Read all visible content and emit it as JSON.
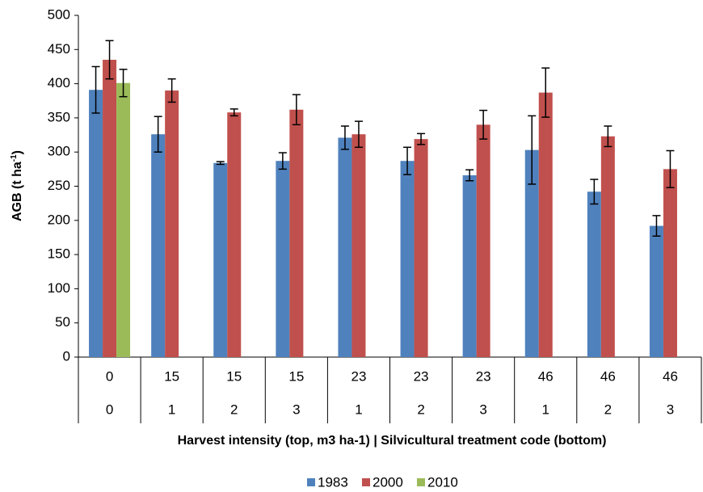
{
  "chart_data": {
    "type": "bar",
    "ylabel": {
      "text": "AGB (t ha",
      "sup": "-1",
      "end": ")"
    },
    "xlabel": "Harvest intensity (top, m3 ha-1) | Silvicultural treatment code (bottom)",
    "categories": [
      "0",
      "15",
      "15",
      "15",
      "23",
      "23",
      "23",
      "46",
      "46",
      "46"
    ],
    "categories_bottom": [
      "0",
      "1",
      "2",
      "3",
      "1",
      "2",
      "3",
      "1",
      "2",
      "3"
    ],
    "series": [
      {
        "name": "1983",
        "color": "#4f81bd",
        "values": [
          391,
          326,
          284,
          287,
          321,
          287,
          266,
          303,
          242,
          192
        ],
        "errors": [
          34,
          26,
          2,
          12,
          17,
          20,
          8,
          50,
          18,
          15
        ]
      },
      {
        "name": "2000",
        "color": "#c0504d",
        "values": [
          435,
          390,
          358,
          362,
          326,
          319,
          340,
          387,
          323,
          275
        ],
        "errors": [
          28,
          17,
          5,
          22,
          19,
          8,
          21,
          36,
          15,
          27
        ]
      },
      {
        "name": "2010",
        "color": "#9bbb59",
        "values": [
          401,
          null,
          null,
          null,
          null,
          null,
          null,
          null,
          null,
          null
        ],
        "errors": [
          20,
          null,
          null,
          null,
          null,
          null,
          null,
          null,
          null,
          null
        ]
      }
    ],
    "ylim": [
      0,
      500
    ],
    "yticks": [
      0,
      50,
      100,
      150,
      200,
      250,
      300,
      350,
      400,
      450,
      500
    ],
    "legend": "bottom"
  }
}
